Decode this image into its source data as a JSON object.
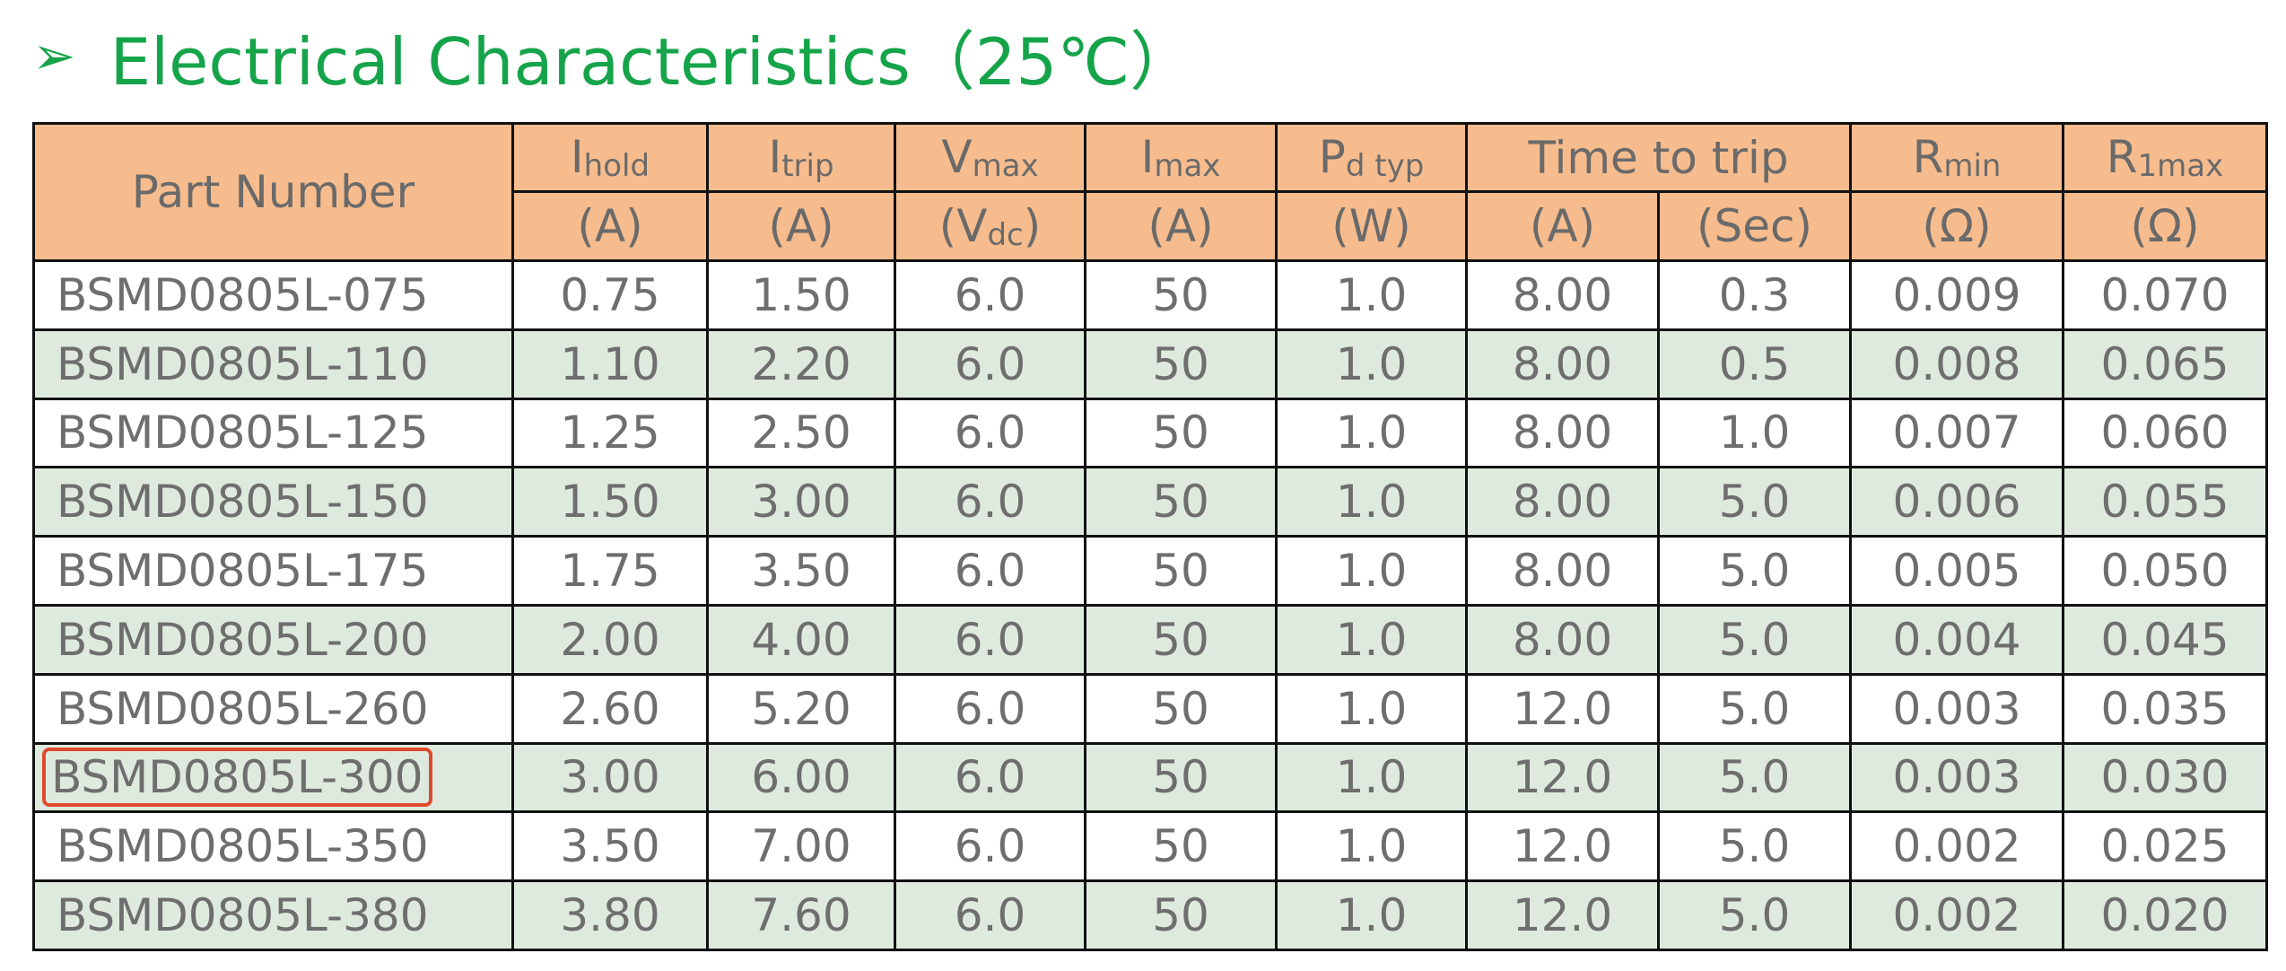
{
  "header": {
    "marker": "➢",
    "title": "Electrical Characteristics（25℃）"
  },
  "table": {
    "header": [
      {
        "label": "Part Number"
      },
      {
        "label": "I",
        "sub": "hold",
        "unit": "(A)"
      },
      {
        "label": "I",
        "sub": "trip",
        "unit": "(A)"
      },
      {
        "label": "V",
        "sub": "max",
        "unit": "(V",
        "unit_sub": "dc",
        "unit_end": ")"
      },
      {
        "label": "I",
        "sub": "max",
        "unit": "(A)"
      },
      {
        "label": "P",
        "sub": "d typ",
        "unit": "(W)"
      },
      {
        "label": "Time to trip",
        "units": [
          "(A)",
          "(Sec)"
        ]
      },
      {
        "label": "R",
        "sub": "min",
        "unit": "(Ω)"
      },
      {
        "label": "R",
        "sub": "1max",
        "unit": "(Ω)"
      }
    ],
    "rows": [
      [
        "BSMD0805L-075",
        "0.75",
        "1.50",
        "6.0",
        "50",
        "1.0",
        "8.00",
        "0.3",
        "0.009",
        "0.070"
      ],
      [
        "BSMD0805L-110",
        "1.10",
        "2.20",
        "6.0",
        "50",
        "1.0",
        "8.00",
        "0.5",
        "0.008",
        "0.065"
      ],
      [
        "BSMD0805L-125",
        "1.25",
        "2.50",
        "6.0",
        "50",
        "1.0",
        "8.00",
        "1.0",
        "0.007",
        "0.060"
      ],
      [
        "BSMD0805L-150",
        "1.50",
        "3.00",
        "6.0",
        "50",
        "1.0",
        "8.00",
        "5.0",
        "0.006",
        "0.055"
      ],
      [
        "BSMD0805L-175",
        "1.75",
        "3.50",
        "6.0",
        "50",
        "1.0",
        "8.00",
        "5.0",
        "0.005",
        "0.050"
      ],
      [
        "BSMD0805L-200",
        "2.00",
        "4.00",
        "6.0",
        "50",
        "1.0",
        "8.00",
        "5.0",
        "0.004",
        "0.045"
      ],
      [
        "BSMD0805L-260",
        "2.60",
        "5.20",
        "6.0",
        "50",
        "1.0",
        "12.0",
        "5.0",
        "0.003",
        "0.035"
      ],
      [
        "BSMD0805L-300",
        "3.00",
        "6.00",
        "6.0",
        "50",
        "1.0",
        "12.0",
        "5.0",
        "0.003",
        "0.030"
      ],
      [
        "BSMD0805L-350",
        "3.50",
        "7.00",
        "6.0",
        "50",
        "1.0",
        "12.0",
        "5.0",
        "0.002",
        "0.025"
      ],
      [
        "BSMD0805L-380",
        "3.80",
        "7.60",
        "6.0",
        "50",
        "1.0",
        "12.0",
        "5.0",
        "0.002",
        "0.020"
      ]
    ],
    "highlighted_row": 7
  }
}
